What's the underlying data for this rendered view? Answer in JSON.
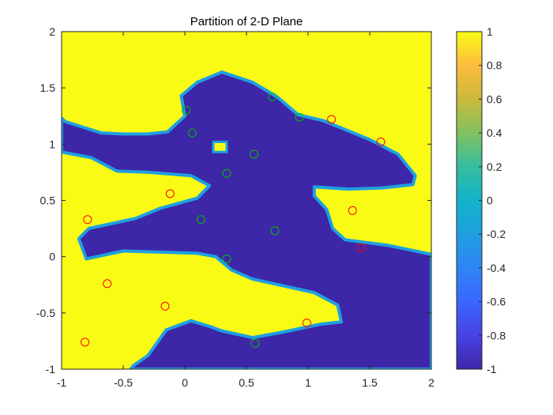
{
  "chart_data": {
    "type": "heatmap",
    "title": "Partition of 2-D Plane",
    "xlim": [
      -1,
      2
    ],
    "ylim": [
      -1,
      2
    ],
    "x_ticks": [
      "-1",
      "-0.5",
      "0",
      "0.5",
      "1",
      "1.5",
      "2"
    ],
    "y_ticks": [
      "-1",
      "-0.5",
      "0",
      "0.5",
      "1",
      "1.5",
      "2"
    ],
    "colorbar": {
      "range": [
        -1,
        1
      ],
      "ticks": [
        "-1",
        "-0.8",
        "-0.6",
        "-0.4",
        "-0.2",
        "0",
        "0.2",
        "0.4",
        "0.6",
        "0.8",
        "1"
      ],
      "colormap": "parula"
    },
    "colors": {
      "low": "#3e26a8",
      "high": "#f9fb15",
      "boundary": "#1fa0e0",
      "class_pos_marker": "#ff0000",
      "class_neg_marker": "#00c000"
    },
    "region_low_polygon": [
      [
        -0.97,
        1.2
      ],
      [
        -0.68,
        1.1
      ],
      [
        -0.5,
        1.09
      ],
      [
        -0.3,
        1.09
      ],
      [
        -0.14,
        1.11
      ],
      [
        0.0,
        1.25
      ],
      [
        -0.03,
        1.43
      ],
      [
        0.1,
        1.55
      ],
      [
        0.3,
        1.64
      ],
      [
        0.55,
        1.55
      ],
      [
        0.75,
        1.42
      ],
      [
        0.92,
        1.26
      ],
      [
        1.12,
        1.21
      ],
      [
        1.3,
        1.13
      ],
      [
        1.5,
        1.04
      ],
      [
        1.73,
        0.91
      ],
      [
        1.87,
        0.72
      ],
      [
        1.85,
        0.64
      ],
      [
        1.6,
        0.61
      ],
      [
        1.33,
        0.6
      ],
      [
        1.05,
        0.62
      ],
      [
        1.05,
        0.54
      ],
      [
        1.15,
        0.42
      ],
      [
        1.2,
        0.25
      ],
      [
        1.3,
        0.15
      ],
      [
        1.65,
        0.1
      ],
      [
        2.0,
        0.02
      ],
      [
        2.0,
        -1.0
      ],
      [
        -0.44,
        -1.0
      ],
      [
        -0.42,
        -0.97
      ],
      [
        -0.3,
        -0.88
      ],
      [
        -0.15,
        -0.65
      ],
      [
        0.05,
        -0.57
      ],
      [
        0.2,
        -0.62
      ],
      [
        0.3,
        -0.66
      ],
      [
        0.55,
        -0.72
      ],
      [
        0.8,
        -0.67
      ],
      [
        1.1,
        -0.6
      ],
      [
        1.27,
        -0.58
      ],
      [
        1.24,
        -0.43
      ],
      [
        1.05,
        -0.32
      ],
      [
        0.55,
        -0.2
      ],
      [
        0.38,
        -0.12
      ],
      [
        0.25,
        0.0
      ],
      [
        0.1,
        0.03
      ],
      [
        -0.5,
        0.05
      ],
      [
        -0.8,
        -0.02
      ],
      [
        -0.86,
        0.16
      ],
      [
        -0.78,
        0.25
      ],
      [
        -0.4,
        0.34
      ],
      [
        -0.2,
        0.43
      ],
      [
        0.1,
        0.52
      ],
      [
        0.2,
        0.63
      ],
      [
        0.05,
        0.72
      ],
      [
        -0.3,
        0.75
      ],
      [
        -0.55,
        0.76
      ],
      [
        -0.76,
        0.88
      ],
      [
        -1.0,
        0.93
      ],
      [
        -1.0,
        1.23
      ]
    ],
    "region_high_islands": [
      [
        [
          0.23,
          1.02
        ],
        [
          0.34,
          1.02
        ],
        [
          0.34,
          0.93
        ],
        [
          0.23,
          0.93
        ]
      ]
    ],
    "series": [
      {
        "class": "positive",
        "x": [
          -0.79,
          -0.12,
          -0.63,
          -0.16,
          -0.81,
          0.99,
          1.19,
          1.59,
          1.36,
          1.43
        ],
        "y": [
          0.33,
          0.56,
          -0.24,
          -0.44,
          -0.76,
          -0.59,
          1.22,
          1.02,
          0.41,
          0.08
        ]
      },
      {
        "class": "negative",
        "x": [
          0.01,
          0.06,
          0.34,
          0.56,
          0.71,
          0.93,
          0.13,
          0.73,
          0.34,
          0.57
        ],
        "y": [
          1.3,
          1.1,
          0.74,
          0.91,
          1.42,
          1.24,
          0.33,
          0.23,
          -0.02,
          -0.77
        ]
      }
    ]
  }
}
